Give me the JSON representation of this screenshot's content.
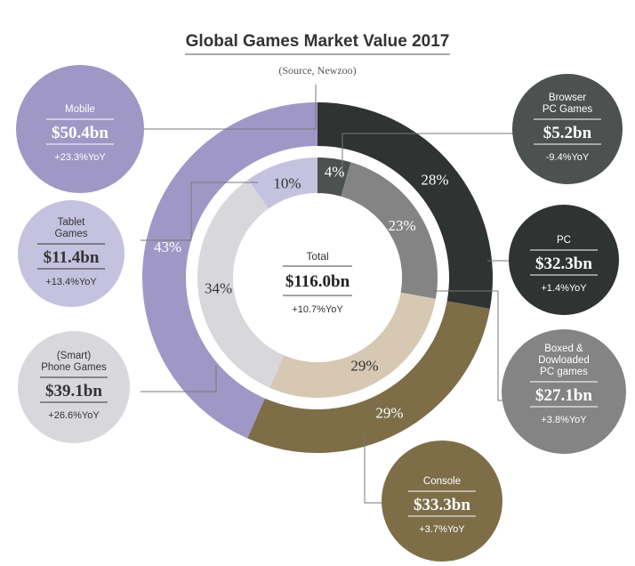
{
  "title": "Global Games Market Value 2017",
  "subtitle": "(Source, Newzoo)",
  "colors": {
    "mobile": "#9f98c6",
    "tablet": "#c5c2e0",
    "phone": "#d8d8dc",
    "pc": "#2f3331",
    "browser": "#4d514f",
    "boxed": "#848484",
    "console": "#7d6e48",
    "console_inner": "#d6c8b3"
  },
  "total": {
    "label": "Total",
    "value": "$116.0bn",
    "yoy": "+10.7%YoY"
  },
  "callouts": {
    "mobile": {
      "label_lines": [
        "Mobile"
      ],
      "value": "$50.4bn",
      "yoy": "+23.3%YoY"
    },
    "tablet": {
      "label_lines": [
        "Tablet",
        "Games"
      ],
      "value": "$11.4bn",
      "yoy": "+13.4%YoY"
    },
    "phone": {
      "label_lines": [
        "(Smart)",
        "Phone Games"
      ],
      "value": "$39.1bn",
      "yoy": "+26.6%YoY"
    },
    "browser": {
      "label_lines": [
        "Browser",
        "PC Games"
      ],
      "value": "$5.2bn",
      "yoy": "-9.4%YoY"
    },
    "pc": {
      "label_lines": [
        "PC"
      ],
      "value": "$32.3bn",
      "yoy": "+1.4%YoY"
    },
    "boxed": {
      "label_lines": [
        "Boxed &",
        "Dowloaded",
        "PC games"
      ],
      "value": "$27.1bn",
      "yoy": "+3.8%YoY"
    },
    "console": {
      "label_lines": [
        "Console"
      ],
      "value": "$33.3bn",
      "yoy": "+3.7%YoY"
    }
  },
  "chart_data": {
    "type": "pie",
    "title": "Global Games Market Value 2017",
    "subtitle": "(Source, Newzoo)",
    "total": 116.0,
    "unit": "$bn",
    "outer_ring": [
      {
        "name": "PC",
        "value": 32.3,
        "label": "28%",
        "color": "#2f3331"
      },
      {
        "name": "Console",
        "value": 33.3,
        "label": "29%",
        "color": "#7d6e48"
      },
      {
        "name": "Mobile",
        "value": 50.4,
        "label": "43%",
        "color": "#9f98c6"
      }
    ],
    "inner_ring": [
      {
        "name": "Browser PC Games",
        "value": 5.2,
        "label": "4%",
        "color": "#4d514f"
      },
      {
        "name": "Boxed & Dowloaded PC games",
        "value": 27.1,
        "label": "23%",
        "color": "#848484"
      },
      {
        "name": "Console",
        "value": 33.3,
        "label": "29%",
        "color": "#d6c8b3"
      },
      {
        "name": "(Smart) Phone Games",
        "value": 39.1,
        "label": "34%",
        "color": "#d8d8dc"
      },
      {
        "name": "Tablet Games",
        "value": 11.4,
        "label": "10%",
        "color": "#c5c2e0"
      }
    ]
  }
}
